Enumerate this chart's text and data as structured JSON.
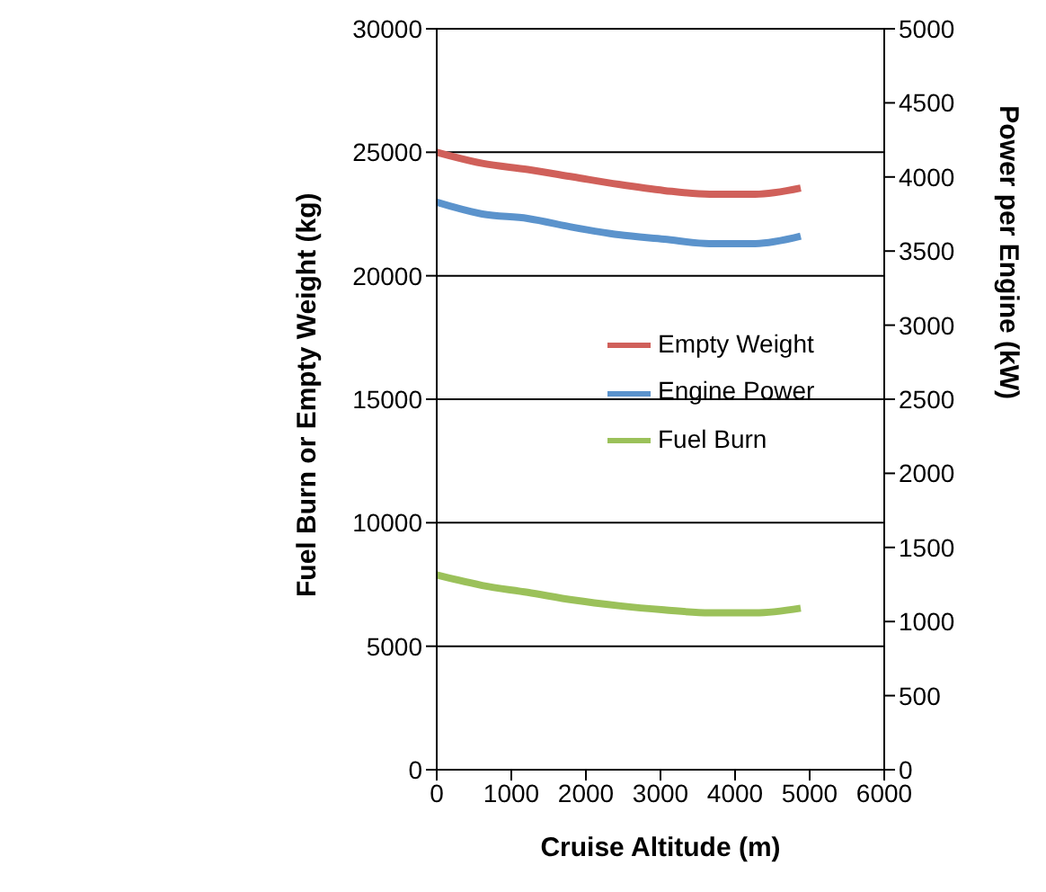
{
  "chart_data": {
    "type": "line",
    "xlabel": "Cruise Altitude (m)",
    "ylabel": "Fuel Burn or Empty Weight (kg)",
    "y2label": "Power per Engine (kW)",
    "x": [
      0,
      610,
      1220,
      1830,
      2440,
      3050,
      3660,
      4270,
      4880
    ],
    "series": [
      {
        "name": "Empty Weight",
        "color": "#d0605a",
        "values": [
          25000,
          24550,
          24300,
          24000,
          23700,
          23450,
          23300,
          23300,
          23550
        ]
      },
      {
        "name": "Fuel Burn",
        "color": "#9bc15a",
        "values": [
          7890,
          7460,
          7180,
          6870,
          6640,
          6470,
          6350,
          6350,
          6540
        ]
      },
      {
        "name": "Engine Power",
        "color": "#5b93cc",
        "axis": "y2",
        "values": [
          3830,
          3750,
          3720,
          3660,
          3610,
          3580,
          3550,
          3550,
          3600
        ]
      }
    ],
    "xlim": [
      0,
      6000
    ],
    "xticks": [
      0,
      1000,
      2000,
      3000,
      4000,
      5000,
      6000
    ],
    "ylim": [
      0,
      30000
    ],
    "yticks": [
      0,
      5000,
      10000,
      15000,
      20000,
      25000,
      30000
    ],
    "y2lim": [
      0,
      5000
    ],
    "y2ticks": [
      0,
      500,
      1000,
      1500,
      2000,
      2500,
      3000,
      3500,
      4000,
      4500,
      5000
    ],
    "grid": "y",
    "legend": "right",
    "marker": "none",
    "line_style": "solid"
  }
}
